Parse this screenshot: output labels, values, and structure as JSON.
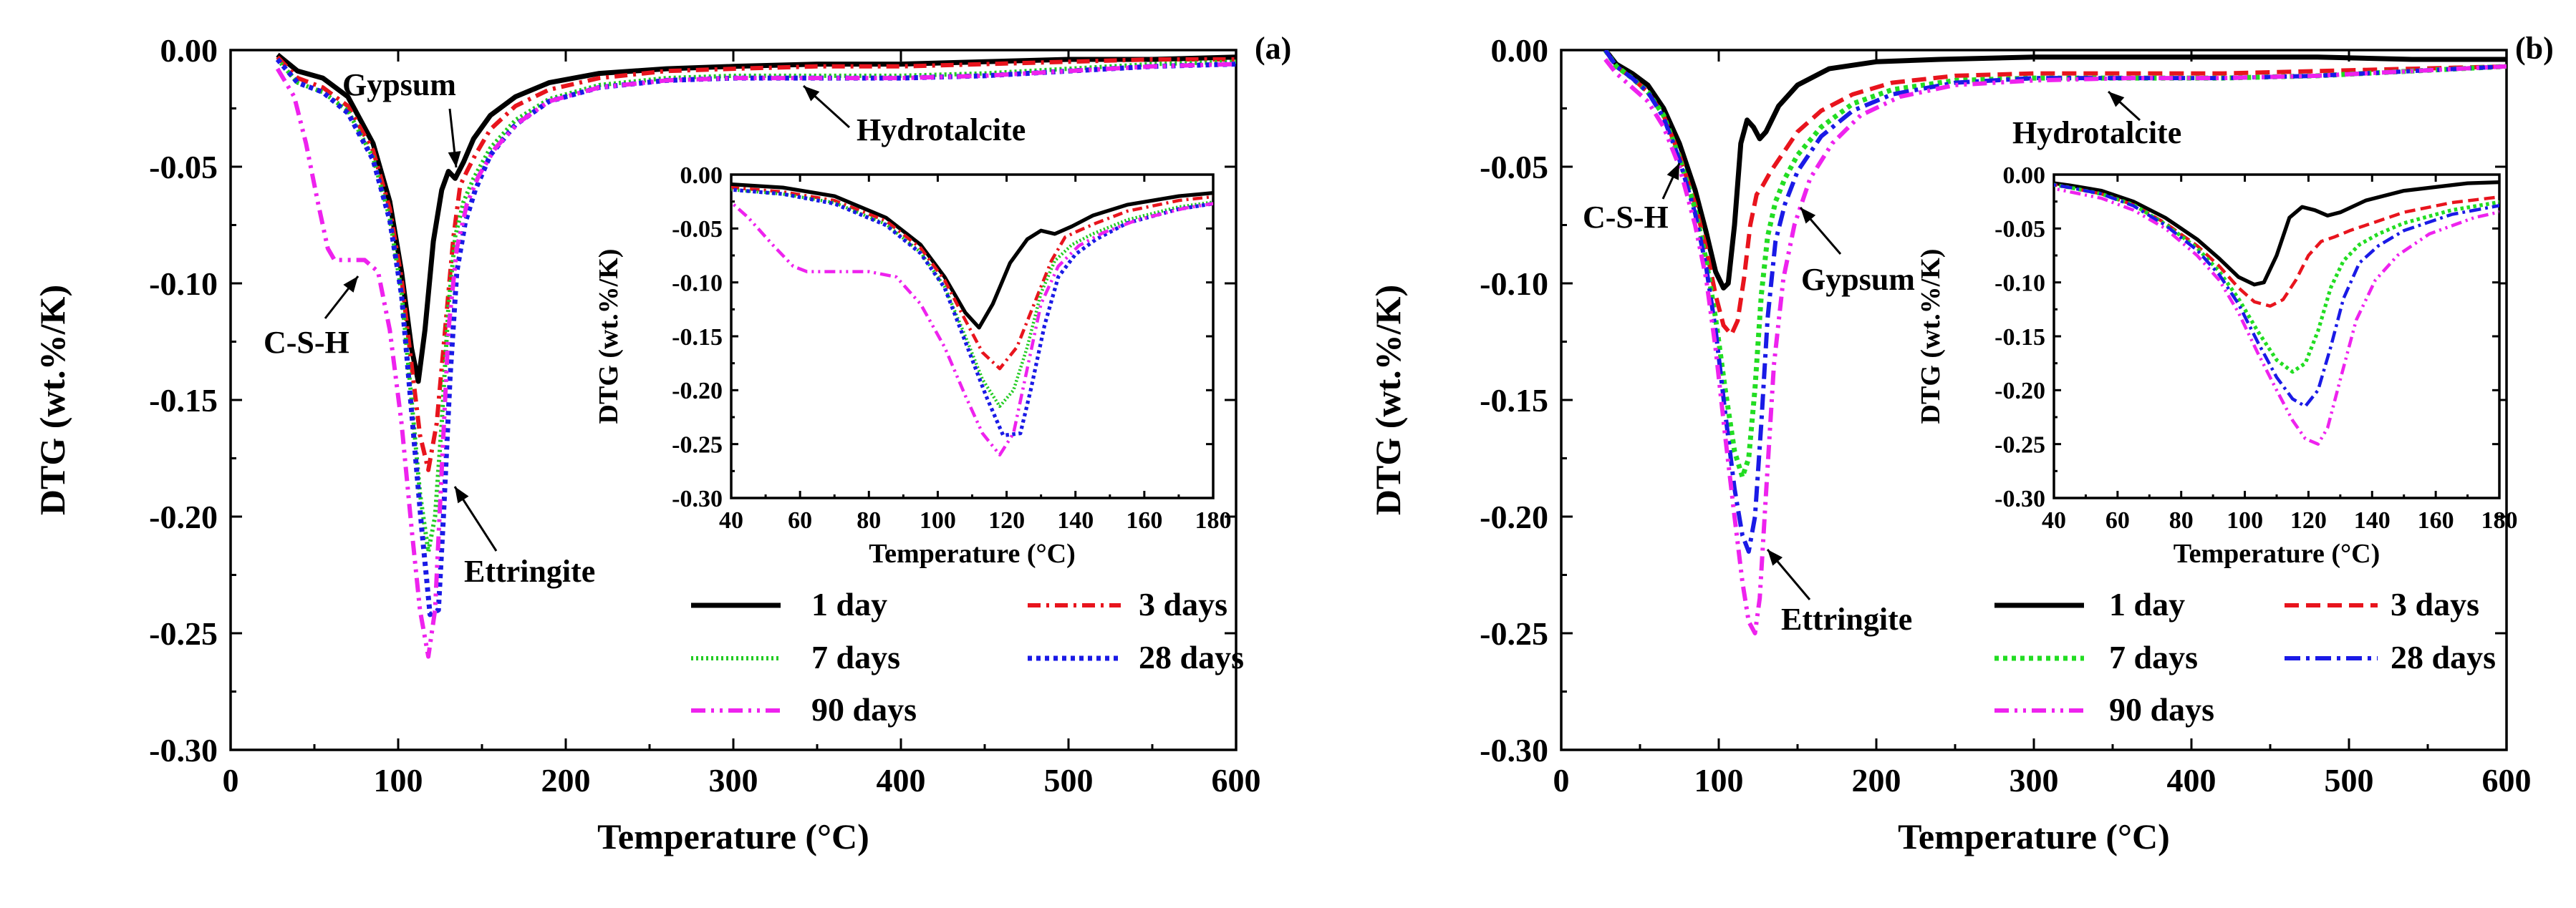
{
  "chart_data": [
    {
      "panel": "(a)",
      "type": "line",
      "xlabel": "Temperature (°C)",
      "ylabel": "DTG (wt.%/K)",
      "xlim": [
        0,
        600
      ],
      "ylim": [
        -0.3,
        0.0
      ],
      "xticks": [
        0,
        100,
        200,
        300,
        400,
        500,
        600
      ],
      "xtick_labels": [
        "0",
        "100",
        "200",
        "300",
        "400",
        "500",
        "600"
      ],
      "yticks": [
        0.0,
        -0.05,
        -0.1,
        -0.15,
        -0.2,
        -0.25,
        -0.3
      ],
      "ytick_labels": [
        "0.00",
        "-0.05",
        "-0.10",
        "-0.15",
        "-0.20",
        "-0.25",
        "-0.30"
      ],
      "annotations": [
        {
          "text": "Gypsum",
          "x": 135,
          "y": -0.052
        },
        {
          "text": "Hydrotalcite",
          "x": 340,
          "y": -0.012
        },
        {
          "text": "C-S-H",
          "x": 88,
          "y": -0.092
        },
        {
          "text": "Ettringite",
          "x": 128,
          "y": -0.18
        }
      ],
      "series": [
        {
          "name": "1 day",
          "color": "#000000",
          "dash": "",
          "width": 7,
          "x": [
            28,
            40,
            55,
            70,
            85,
            95,
            102,
            108,
            112,
            116,
            121,
            126,
            130,
            134,
            139,
            145,
            155,
            170,
            190,
            220,
            260,
            300,
            350,
            400,
            450,
            500,
            550,
            600
          ],
          "y": [
            -0.002,
            -0.009,
            -0.012,
            -0.02,
            -0.04,
            -0.065,
            -0.095,
            -0.128,
            -0.142,
            -0.12,
            -0.082,
            -0.06,
            -0.052,
            -0.055,
            -0.048,
            -0.038,
            -0.028,
            -0.02,
            -0.014,
            -0.01,
            -0.008,
            -0.007,
            -0.006,
            -0.006,
            -0.005,
            -0.004,
            -0.004,
            -0.003
          ]
        },
        {
          "name": "3 days",
          "color": "#e8141d",
          "dash": "18,8,4,8",
          "width": 6,
          "x": [
            28,
            40,
            55,
            70,
            85,
            95,
            102,
            108,
            113,
            118,
            123,
            128,
            133,
            137,
            141,
            146,
            155,
            170,
            190,
            220,
            260,
            300,
            350,
            400,
            450,
            500,
            550,
            600
          ],
          "y": [
            -0.003,
            -0.012,
            -0.016,
            -0.024,
            -0.043,
            -0.068,
            -0.098,
            -0.135,
            -0.165,
            -0.18,
            -0.16,
            -0.12,
            -0.08,
            -0.058,
            -0.052,
            -0.045,
            -0.034,
            -0.024,
            -0.017,
            -0.012,
            -0.009,
            -0.008,
            -0.007,
            -0.007,
            -0.006,
            -0.005,
            -0.004,
            -0.004
          ]
        },
        {
          "name": "7 days",
          "color": "#22cc22",
          "dash": "3,4",
          "width": 6,
          "x": [
            28,
            40,
            55,
            70,
            85,
            95,
            102,
            108,
            113,
            118,
            122,
            126,
            130,
            134,
            139,
            145,
            155,
            170,
            190,
            220,
            260,
            300,
            350,
            400,
            450,
            500,
            550,
            600
          ],
          "y": [
            -0.004,
            -0.014,
            -0.018,
            -0.026,
            -0.046,
            -0.072,
            -0.104,
            -0.15,
            -0.19,
            -0.215,
            -0.2,
            -0.16,
            -0.11,
            -0.08,
            -0.065,
            -0.055,
            -0.042,
            -0.03,
            -0.021,
            -0.015,
            -0.012,
            -0.011,
            -0.011,
            -0.011,
            -0.01,
            -0.008,
            -0.006,
            -0.005
          ]
        },
        {
          "name": "28 days",
          "color": "#1a1ae6",
          "dash": "6,6",
          "width": 7,
          "x": [
            28,
            40,
            55,
            70,
            85,
            95,
            102,
            108,
            114,
            119,
            124,
            127,
            131,
            135,
            140,
            146,
            155,
            170,
            190,
            220,
            260,
            300,
            350,
            400,
            450,
            500,
            550,
            600
          ],
          "y": [
            -0.004,
            -0.014,
            -0.018,
            -0.027,
            -0.047,
            -0.073,
            -0.105,
            -0.155,
            -0.205,
            -0.242,
            -0.24,
            -0.2,
            -0.14,
            -0.095,
            -0.074,
            -0.06,
            -0.045,
            -0.032,
            -0.022,
            -0.016,
            -0.013,
            -0.012,
            -0.012,
            -0.012,
            -0.011,
            -0.009,
            -0.007,
            -0.006
          ]
        },
        {
          "name": "90 days",
          "color": "#ee22ee",
          "dash": "20,8,4,8,4,8",
          "width": 6,
          "x": [
            28,
            38,
            45,
            52,
            58,
            62,
            70,
            80,
            88,
            95,
            102,
            108,
            113,
            118,
            122,
            126,
            130,
            135,
            141,
            148,
            158,
            172,
            190,
            220,
            260,
            300,
            350,
            400,
            450,
            500,
            550,
            600
          ],
          "y": [
            -0.008,
            -0.02,
            -0.04,
            -0.065,
            -0.085,
            -0.09,
            -0.09,
            -0.09,
            -0.095,
            -0.12,
            -0.16,
            -0.205,
            -0.24,
            -0.26,
            -0.24,
            -0.18,
            -0.12,
            -0.085,
            -0.066,
            -0.054,
            -0.042,
            -0.031,
            -0.022,
            -0.016,
            -0.013,
            -0.012,
            -0.012,
            -0.012,
            -0.011,
            -0.009,
            -0.007,
            -0.006
          ]
        }
      ]
    },
    {
      "panel": "(b)",
      "type": "line",
      "xlabel": "Temperature (°C)",
      "ylabel": "DTG (wt.%/K)",
      "xlim": [
        0,
        600
      ],
      "ylim": [
        -0.3,
        0.0
      ],
      "xticks": [
        0,
        100,
        200,
        300,
        400,
        500,
        600
      ],
      "xtick_labels": [
        "0",
        "100",
        "200",
        "300",
        "400",
        "500",
        "600"
      ],
      "yticks": [
        0.0,
        -0.05,
        -0.1,
        -0.15,
        -0.2,
        -0.25,
        -0.3
      ],
      "ytick_labels": [
        "0.00",
        "-0.05",
        "-0.10",
        "-0.15",
        "-0.20",
        "-0.25",
        "-0.30"
      ],
      "annotations": [
        {
          "text": "C-S-H",
          "x": 78,
          "y": -0.048
        },
        {
          "text": "Gypsum",
          "x": 135,
          "y": -0.065
        },
        {
          "text": "Hydrotalcite",
          "x": 300,
          "y": -0.012
        },
        {
          "text": "Ettringite",
          "x": 125,
          "y": -0.215
        }
      ],
      "series": [
        {
          "name": "1 day",
          "color": "#000000",
          "dash": "",
          "width": 7,
          "x": [
            28,
            35,
            45,
            55,
            65,
            75,
            85,
            92,
            98,
            103,
            106,
            110,
            114,
            118,
            122,
            126,
            130,
            138,
            150,
            170,
            200,
            240,
            300,
            360,
            420,
            480,
            540,
            600
          ],
          "y": [
            0.0,
            -0.006,
            -0.01,
            -0.015,
            -0.025,
            -0.04,
            -0.06,
            -0.078,
            -0.095,
            -0.102,
            -0.1,
            -0.075,
            -0.04,
            -0.03,
            -0.033,
            -0.038,
            -0.035,
            -0.024,
            -0.015,
            -0.008,
            -0.005,
            -0.004,
            -0.003,
            -0.003,
            -0.003,
            -0.003,
            -0.004,
            -0.004
          ]
        },
        {
          "name": "3 days",
          "color": "#e8141d",
          "dash": "20,10",
          "width": 6,
          "x": [
            28,
            35,
            45,
            55,
            65,
            75,
            85,
            92,
            98,
            103,
            108,
            112,
            116,
            120,
            124,
            128,
            133,
            140,
            150,
            165,
            185,
            210,
            250,
            300,
            360,
            420,
            480,
            540,
            600
          ],
          "y": [
            0.0,
            -0.007,
            -0.012,
            -0.018,
            -0.028,
            -0.045,
            -0.066,
            -0.085,
            -0.105,
            -0.118,
            -0.122,
            -0.116,
            -0.098,
            -0.075,
            -0.062,
            -0.058,
            -0.052,
            -0.045,
            -0.035,
            -0.026,
            -0.019,
            -0.014,
            -0.011,
            -0.01,
            -0.01,
            -0.01,
            -0.009,
            -0.008,
            -0.007
          ]
        },
        {
          "name": "7 days",
          "color": "#22dd22",
          "dash": "6,6",
          "width": 7,
          "x": [
            28,
            35,
            45,
            55,
            65,
            75,
            85,
            92,
            98,
            104,
            110,
            115,
            119,
            123,
            127,
            131,
            136,
            142,
            150,
            165,
            185,
            210,
            250,
            300,
            360,
            420,
            480,
            540,
            600
          ],
          "y": [
            0.0,
            -0.007,
            -0.012,
            -0.018,
            -0.028,
            -0.046,
            -0.068,
            -0.09,
            -0.115,
            -0.145,
            -0.172,
            -0.183,
            -0.175,
            -0.145,
            -0.105,
            -0.08,
            -0.065,
            -0.055,
            -0.045,
            -0.033,
            -0.023,
            -0.017,
            -0.013,
            -0.012,
            -0.012,
            -0.012,
            -0.011,
            -0.009,
            -0.007
          ]
        },
        {
          "name": "28 days",
          "color": "#1a1ae6",
          "dash": "22,8,5,8",
          "width": 6,
          "x": [
            28,
            35,
            45,
            55,
            65,
            75,
            85,
            92,
            98,
            104,
            110,
            115,
            119,
            123,
            127,
            131,
            136,
            142,
            150,
            165,
            185,
            210,
            250,
            300,
            360,
            420,
            480,
            540,
            600
          ],
          "y": [
            0.0,
            -0.007,
            -0.012,
            -0.018,
            -0.029,
            -0.047,
            -0.07,
            -0.093,
            -0.12,
            -0.155,
            -0.188,
            -0.208,
            -0.215,
            -0.2,
            -0.16,
            -0.115,
            -0.082,
            -0.066,
            -0.052,
            -0.037,
            -0.026,
            -0.019,
            -0.014,
            -0.012,
            -0.012,
            -0.012,
            -0.011,
            -0.009,
            -0.007
          ]
        },
        {
          "name": "90 days",
          "color": "#ee22ee",
          "dash": "20,8,4,8,4,8",
          "width": 6,
          "x": [
            28,
            35,
            45,
            55,
            65,
            75,
            85,
            92,
            98,
            104,
            110,
            115,
            119,
            123,
            126,
            130,
            135,
            141,
            148,
            158,
            172,
            190,
            215,
            250,
            300,
            360,
            420,
            480,
            540,
            600
          ],
          "y": [
            -0.004,
            -0.01,
            -0.016,
            -0.022,
            -0.033,
            -0.05,
            -0.075,
            -0.098,
            -0.128,
            -0.165,
            -0.2,
            -0.228,
            -0.245,
            -0.25,
            -0.235,
            -0.19,
            -0.135,
            -0.098,
            -0.075,
            -0.055,
            -0.04,
            -0.028,
            -0.02,
            -0.015,
            -0.013,
            -0.012,
            -0.012,
            -0.011,
            -0.009,
            -0.007
          ]
        }
      ]
    }
  ],
  "insets": [
    {
      "panel": "(a)",
      "xlabel": "Temperature (°C)",
      "ylabel": "DTG (wt.%/K)",
      "xlim": [
        40,
        180
      ],
      "ylim": [
        -0.3,
        0.0
      ],
      "xticks": [
        40,
        60,
        80,
        100,
        120,
        140,
        160,
        180
      ],
      "xtick_labels": [
        "40",
        "60",
        "80",
        "100",
        "120",
        "140",
        "160",
        "180"
      ],
      "yticks": [
        0.0,
        -0.05,
        -0.1,
        -0.15,
        -0.2,
        -0.25,
        -0.3
      ],
      "ytick_labels": [
        "0.00",
        "-0.05",
        "-0.10",
        "-0.15",
        "-0.20",
        "-0.25",
        "-0.30"
      ]
    },
    {
      "panel": "(b)",
      "xlabel": "Temperature (°C)",
      "ylabel": "DTG (wt.%/K)",
      "xlim": [
        40,
        180
      ],
      "ylim": [
        -0.3,
        0.0
      ],
      "xticks": [
        40,
        60,
        80,
        100,
        120,
        140,
        160,
        180
      ],
      "xtick_labels": [
        "40",
        "60",
        "80",
        "100",
        "120",
        "140",
        "160",
        "180"
      ],
      "yticks": [
        0.0,
        -0.05,
        -0.1,
        -0.15,
        -0.2,
        -0.25,
        -0.3
      ],
      "ytick_labels": [
        "0.00",
        "-0.05",
        "-0.10",
        "-0.15",
        "-0.20",
        "-0.25",
        "-0.30"
      ]
    }
  ]
}
